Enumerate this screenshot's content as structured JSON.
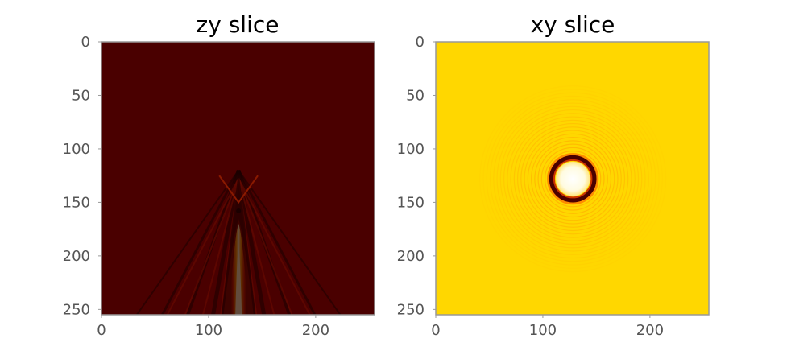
{
  "chart_data": [
    {
      "type": "heatmap",
      "title": "zy slice",
      "xlabel": "",
      "ylabel": "",
      "xlim": [
        0,
        255
      ],
      "ylim": [
        255,
        0
      ],
      "xticks": [
        0,
        100,
        200
      ],
      "yticks": [
        0,
        50,
        100,
        150,
        200,
        250
      ],
      "grid": false,
      "colormap": "hot",
      "background_color": "#4a0000",
      "features": [
        {
          "kind": "beam",
          "center_x": 128,
          "y_start": 170,
          "y_end": 255,
          "peak_color": "#ffffcc"
        },
        {
          "kind": "cone",
          "apex_x": 128,
          "apex_y": 120,
          "spread_at_bottom": 95
        }
      ]
    },
    {
      "type": "heatmap",
      "title": "xy slice",
      "xlabel": "",
      "ylabel": "",
      "xlim": [
        0,
        255
      ],
      "ylim": [
        255,
        0
      ],
      "xticks": [
        0,
        100,
        200
      ],
      "yticks": [
        0,
        50,
        100,
        150,
        200,
        250
      ],
      "grid": false,
      "colormap": "hot",
      "background_color": "#ffd700",
      "features": [
        {
          "kind": "ring",
          "center_x": 128,
          "center_y": 128,
          "radius": 20,
          "ring_color": "#4a0000"
        },
        {
          "kind": "core",
          "center_x": 128,
          "center_y": 128,
          "radius": 16,
          "core_color": "#fffbe0"
        },
        {
          "kind": "ripples",
          "center_x": 128,
          "center_y": 128,
          "max_radius": 90
        }
      ]
    }
  ]
}
